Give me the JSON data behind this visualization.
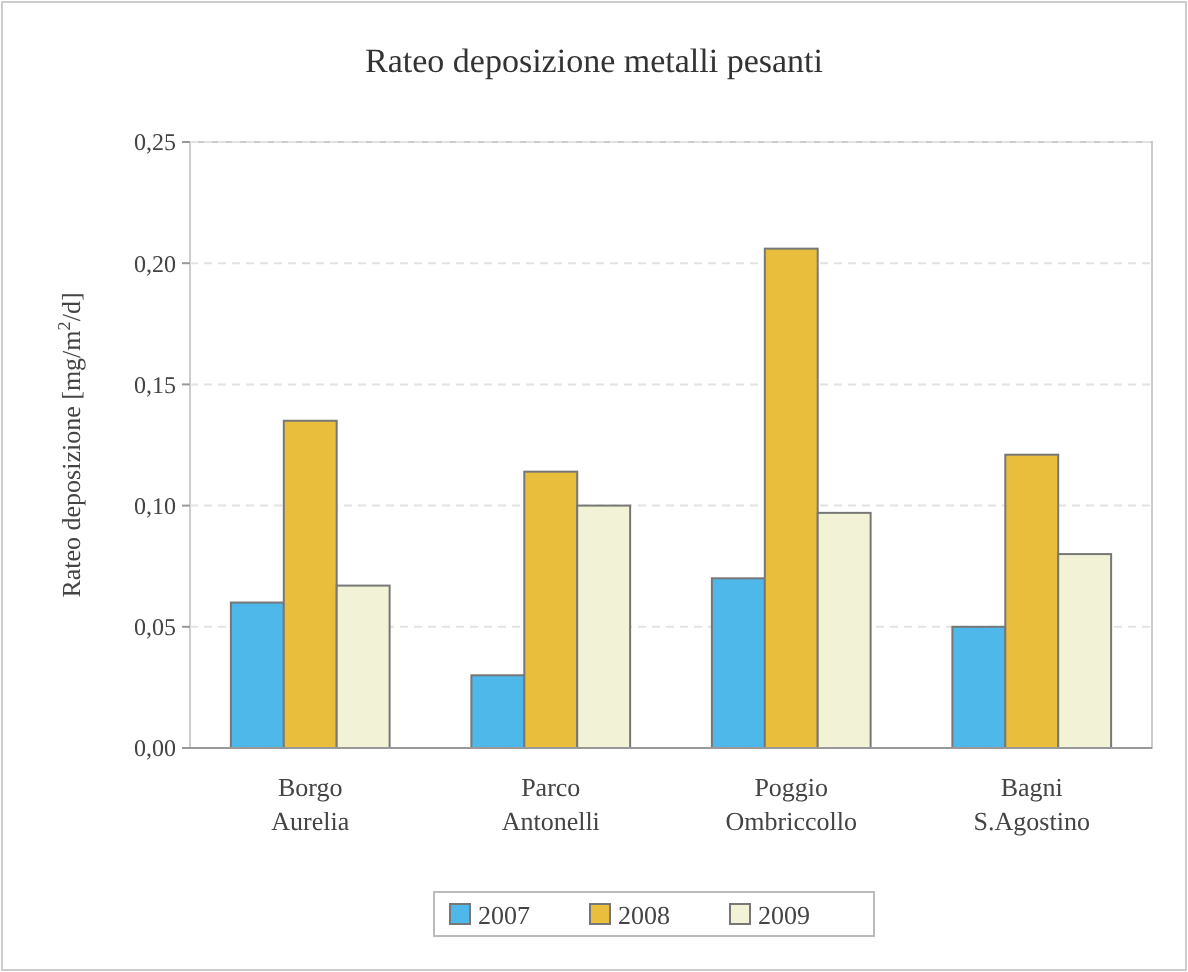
{
  "chart_data": {
    "type": "bar",
    "title": "Rateo deposizione metalli pesanti",
    "ylabel": "Rateo deposizione [mg/m$^{2}$/d]",
    "categories": [
      "Borgo\nAurelia",
      "Parco\nAntonelli",
      "Poggio\nOmbriccollo",
      "Bagni\nS.Agostino"
    ],
    "series": [
      {
        "name": "2007",
        "color": "#4fb8ea",
        "values": [
          0.06,
          0.03,
          0.07,
          0.05
        ]
      },
      {
        "name": "2008",
        "color": "#e8be3c",
        "values": [
          0.135,
          0.114,
          0.206,
          0.121
        ]
      },
      {
        "name": "2009",
        "color": "#f2f2d6",
        "values": [
          0.067,
          0.1,
          0.097,
          0.08
        ]
      }
    ],
    "ylim": [
      0,
      0.25
    ],
    "yticks": [
      {
        "value": 0,
        "label": "0,00"
      },
      {
        "value": 0.05,
        "label": "0,05"
      },
      {
        "value": 0.1,
        "label": "0,10"
      },
      {
        "value": 0.15,
        "label": "0,15"
      },
      {
        "value": 0.2,
        "label": "0,20"
      },
      {
        "value": 0.25,
        "label": "0,25"
      }
    ],
    "grid": "y",
    "legend": "bottom"
  }
}
